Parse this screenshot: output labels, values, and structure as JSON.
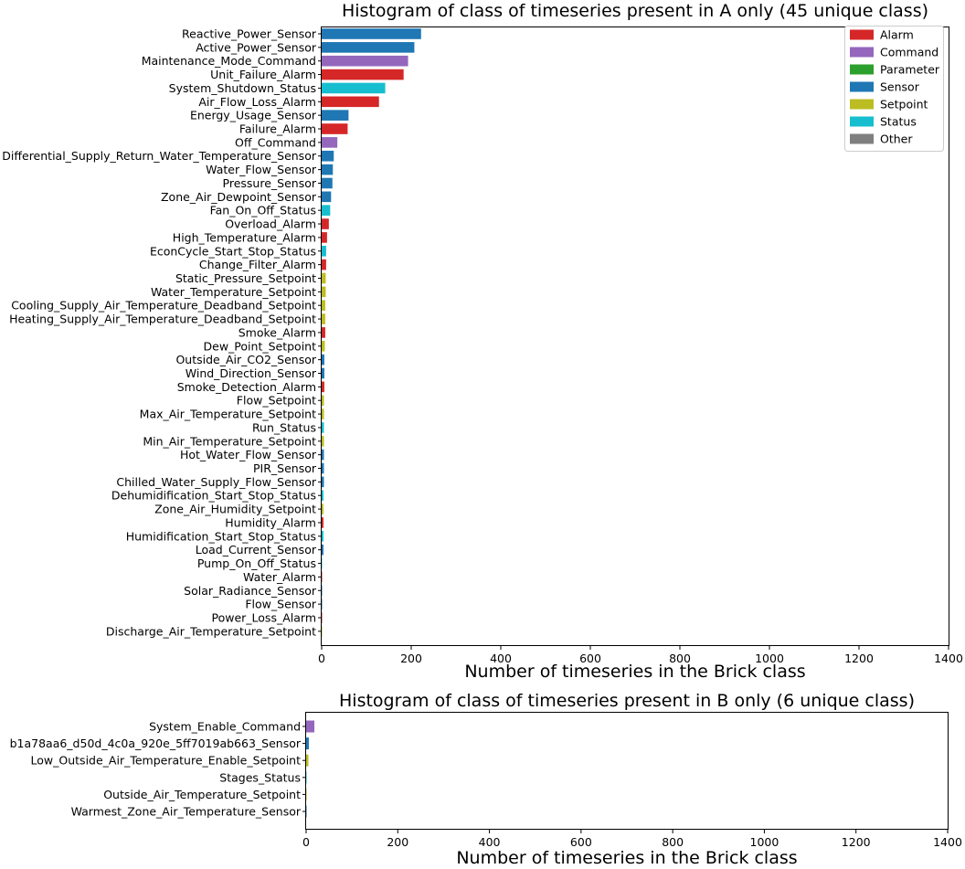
{
  "colors": {
    "Alarm": "#d62728",
    "Command": "#9467bd",
    "Parameter": "#2ca02c",
    "Sensor": "#1f77b4",
    "Setpoint": "#bcbd22",
    "Status": "#17becf",
    "Other": "#7f7f7f"
  },
  "chart_data": [
    {
      "type": "bar",
      "orientation": "horizontal",
      "title": "Histogram of class of timeseries present in A only (45 unique class)",
      "xlabel": "Number of timeseries in the Brick class",
      "ylabel": "",
      "xlim": [
        0,
        1400
      ],
      "xticks": [
        0,
        200,
        400,
        600,
        800,
        1000,
        1200,
        1400
      ],
      "grid": false,
      "legend_position": "top-right",
      "legend": [
        "Alarm",
        "Command",
        "Parameter",
        "Sensor",
        "Setpoint",
        "Status",
        "Other"
      ],
      "bars": [
        {
          "label": "Reactive_Power_Sensor",
          "value": 222,
          "group": "Sensor"
        },
        {
          "label": "Active_Power_Sensor",
          "value": 207,
          "group": "Sensor"
        },
        {
          "label": "Maintenance_Mode_Command",
          "value": 193,
          "group": "Command"
        },
        {
          "label": "Unit_Failure_Alarm",
          "value": 183,
          "group": "Alarm"
        },
        {
          "label": "System_Shutdown_Status",
          "value": 142,
          "group": "Status"
        },
        {
          "label": "Air_Flow_Loss_Alarm",
          "value": 128,
          "group": "Alarm"
        },
        {
          "label": "Energy_Usage_Sensor",
          "value": 60,
          "group": "Sensor"
        },
        {
          "label": "Failure_Alarm",
          "value": 58,
          "group": "Alarm"
        },
        {
          "label": "Off_Command",
          "value": 35,
          "group": "Command"
        },
        {
          "label": "Differential_Supply_Return_Water_Temperature_Sensor",
          "value": 27,
          "group": "Sensor"
        },
        {
          "label": "Water_Flow_Sensor",
          "value": 25,
          "group": "Sensor"
        },
        {
          "label": "Pressure_Sensor",
          "value": 24,
          "group": "Sensor"
        },
        {
          "label": "Zone_Air_Dewpoint_Sensor",
          "value": 21,
          "group": "Sensor"
        },
        {
          "label": "Fan_On_Off_Status",
          "value": 19,
          "group": "Status"
        },
        {
          "label": "Overload_Alarm",
          "value": 16,
          "group": "Alarm"
        },
        {
          "label": "High_Temperature_Alarm",
          "value": 12,
          "group": "Alarm"
        },
        {
          "label": "EconCycle_Start_Stop_Status",
          "value": 10,
          "group": "Status"
        },
        {
          "label": "Change_Filter_Alarm",
          "value": 10,
          "group": "Alarm"
        },
        {
          "label": "Static_Pressure_Setpoint",
          "value": 9,
          "group": "Setpoint"
        },
        {
          "label": "Water_Temperature_Setpoint",
          "value": 9,
          "group": "Setpoint"
        },
        {
          "label": "Cooling_Supply_Air_Temperature_Deadband_Setpoint",
          "value": 8,
          "group": "Setpoint"
        },
        {
          "label": "Heating_Supply_Air_Temperature_Deadband_Setpoint",
          "value": 8,
          "group": "Setpoint"
        },
        {
          "label": "Smoke_Alarm",
          "value": 8,
          "group": "Alarm"
        },
        {
          "label": "Dew_Point_Setpoint",
          "value": 7,
          "group": "Setpoint"
        },
        {
          "label": "Outside_Air_CO2_Sensor",
          "value": 6,
          "group": "Sensor"
        },
        {
          "label": "Wind_Direction_Sensor",
          "value": 6,
          "group": "Sensor"
        },
        {
          "label": "Smoke_Detection_Alarm",
          "value": 6,
          "group": "Alarm"
        },
        {
          "label": "Flow_Setpoint",
          "value": 5,
          "group": "Setpoint"
        },
        {
          "label": "Max_Air_Temperature_Setpoint",
          "value": 5,
          "group": "Setpoint"
        },
        {
          "label": "Run_Status",
          "value": 5,
          "group": "Status"
        },
        {
          "label": "Min_Air_Temperature_Setpoint",
          "value": 5,
          "group": "Setpoint"
        },
        {
          "label": "Hot_Water_Flow_Sensor",
          "value": 5,
          "group": "Sensor"
        },
        {
          "label": "PIR_Sensor",
          "value": 5,
          "group": "Sensor"
        },
        {
          "label": "Chilled_Water_Supply_Flow_Sensor",
          "value": 5,
          "group": "Sensor"
        },
        {
          "label": "Dehumidification_Start_Stop_Status",
          "value": 4,
          "group": "Status"
        },
        {
          "label": "Zone_Air_Humidity_Setpoint",
          "value": 4,
          "group": "Setpoint"
        },
        {
          "label": "Humidity_Alarm",
          "value": 4,
          "group": "Alarm"
        },
        {
          "label": "Humidification_Start_Stop_Status",
          "value": 4,
          "group": "Status"
        },
        {
          "label": "Load_Current_Sensor",
          "value": 4,
          "group": "Sensor"
        },
        {
          "label": "Pump_On_Off_Status",
          "value": 1,
          "group": "Status"
        },
        {
          "label": "Water_Alarm",
          "value": 1,
          "group": "Alarm"
        },
        {
          "label": "Solar_Radiance_Sensor",
          "value": 1,
          "group": "Sensor"
        },
        {
          "label": "Flow_Sensor",
          "value": 1,
          "group": "Sensor"
        },
        {
          "label": "Power_Loss_Alarm",
          "value": 1,
          "group": "Alarm"
        },
        {
          "label": "Discharge_Air_Temperature_Setpoint",
          "value": 1,
          "group": "Setpoint"
        }
      ]
    },
    {
      "type": "bar",
      "orientation": "horizontal",
      "title": "Histogram of class of timeseries present in B only (6 unique class)",
      "xlabel": "Number of timeseries in the Brick class",
      "ylabel": "",
      "xlim": [
        0,
        1400
      ],
      "xticks": [
        0,
        200,
        400,
        600,
        800,
        1000,
        1200,
        1400
      ],
      "grid": false,
      "bars": [
        {
          "label": "System_Enable_Command",
          "value": 18,
          "group": "Command"
        },
        {
          "label": "b1a78aa6_d50d_4c0a_920e_5ff7019ab663_Sensor",
          "value": 6,
          "group": "Sensor"
        },
        {
          "label": "Low_Outside_Air_Temperature_Enable_Setpoint",
          "value": 5,
          "group": "Setpoint"
        },
        {
          "label": "Stages_Status",
          "value": 1,
          "group": "Status"
        },
        {
          "label": "Outside_Air_Temperature_Setpoint",
          "value": 1,
          "group": "Setpoint"
        },
        {
          "label": "Warmest_Zone_Air_Temperature_Sensor",
          "value": 1,
          "group": "Sensor"
        }
      ]
    }
  ]
}
